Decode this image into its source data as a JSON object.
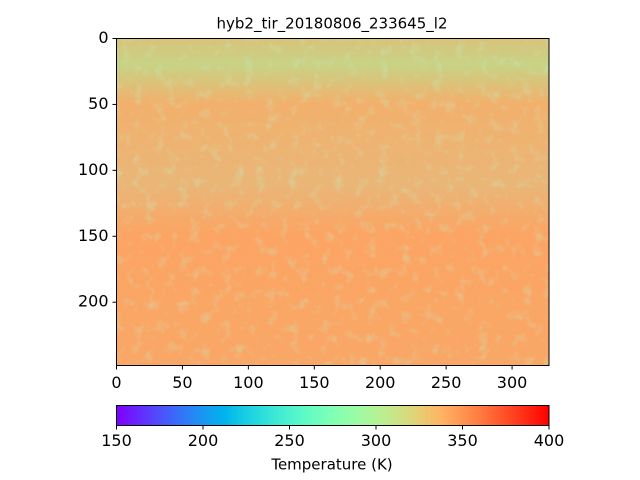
{
  "chart_data": {
    "type": "image",
    "title": "hyb2_tir_20180806_233645_l2",
    "xlim": [
      0,
      328
    ],
    "ylim": [
      248,
      0
    ],
    "xticks": [
      0,
      50,
      100,
      150,
      200,
      250,
      300
    ],
    "yticks": [
      0,
      50,
      100,
      150,
      200
    ],
    "colormap": "rainbow",
    "colorbar_label": "Temperature (K)",
    "clim": [
      150,
      400
    ],
    "cticks": [
      150,
      200,
      250,
      300,
      350,
      400
    ]
  }
}
